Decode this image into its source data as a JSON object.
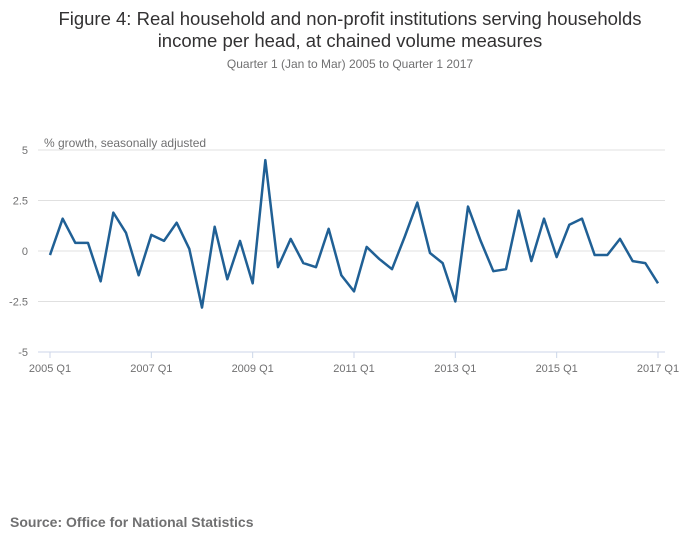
{
  "chart_data": {
    "type": "line",
    "title": "Figure 4: Real household and non-profit institutions serving households income per head, at chained volume measures",
    "title_lines": [
      "Figure 4: Real household and non-profit institutions serving households",
      "income per head, at chained volume measures"
    ],
    "subtitle": "Quarter 1 (Jan to Mar) 2005 to Quarter 1 2017",
    "ylabel": "% growth, seasonally adjusted",
    "xlabel": "",
    "ylim": [
      -5,
      5
    ],
    "yticks": [
      5,
      2.5,
      0,
      -2.5,
      -5
    ],
    "ytick_labels": [
      "5",
      "2.5",
      "0",
      "-2.5",
      "-5"
    ],
    "xtick_labels": [
      "2005 Q1",
      "2007 Q1",
      "2009 Q1",
      "2011 Q1",
      "2013 Q1",
      "2015 Q1",
      "2017 Q1"
    ],
    "grid": true,
    "line_color": "#206095",
    "start": "2005 Q1",
    "end": "2017 Q1",
    "values": [
      -0.2,
      1.6,
      0.4,
      0.4,
      -1.5,
      1.9,
      0.9,
      -1.2,
      0.8,
      0.5,
      1.4,
      0.1,
      -2.8,
      1.2,
      -1.4,
      0.5,
      -1.6,
      4.5,
      -0.8,
      0.6,
      -0.6,
      -0.8,
      1.1,
      -1.2,
      -2.0,
      0.2,
      -0.4,
      -0.9,
      0.7,
      2.4,
      -0.1,
      -0.6,
      -2.5,
      2.2,
      0.5,
      -1.0,
      -0.9,
      2.0,
      -0.5,
      1.6,
      -0.3,
      1.3,
      1.6,
      -0.2,
      -0.2,
      0.6,
      -0.5,
      -0.6,
      -1.6
    ]
  },
  "source": "Source: Office for National Statistics"
}
